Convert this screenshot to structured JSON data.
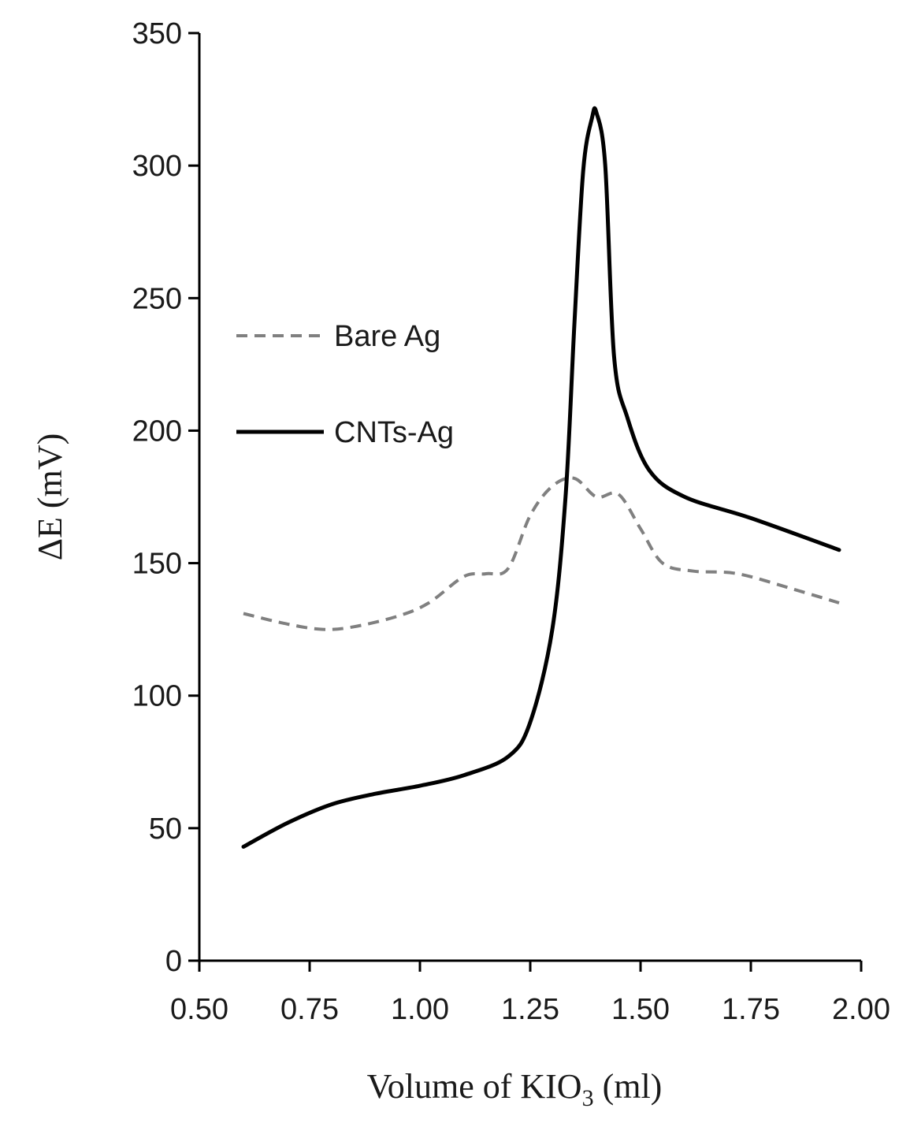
{
  "chart_data": {
    "type": "line",
    "title": "",
    "xlabel": "Volume of KIO",
    "xlabel_subscript": "3",
    "xlabel_suffix": " (ml)",
    "ylabel": "ΔE (mV)",
    "xlim": [
      0.5,
      2.0
    ],
    "ylim": [
      0,
      350
    ],
    "x_ticks": [
      "0.50",
      "0.75",
      "1.00",
      "1.25",
      "1.50",
      "1.75",
      "2.00"
    ],
    "y_ticks": [
      "0",
      "50",
      "100",
      "150",
      "200",
      "250",
      "300",
      "350"
    ],
    "x_tick_values": [
      0.5,
      0.75,
      1.0,
      1.25,
      1.5,
      1.75,
      2.0
    ],
    "y_tick_values": [
      0,
      50,
      100,
      150,
      200,
      250,
      300,
      350
    ],
    "grid": false,
    "legend_position": "left-middle",
    "series": [
      {
        "name": "Bare Ag",
        "style": "dashed",
        "color": "#808080",
        "x": [
          0.6,
          0.7,
          0.78,
          0.85,
          0.95,
          1.02,
          1.1,
          1.15,
          1.2,
          1.25,
          1.3,
          1.35,
          1.4,
          1.45,
          1.5,
          1.55,
          1.62,
          1.72,
          1.85,
          1.95
        ],
        "y": [
          131,
          127,
          125,
          126,
          130,
          135,
          145,
          146,
          148,
          168,
          179,
          182,
          175,
          176,
          163,
          150,
          147,
          146,
          140,
          135
        ]
      },
      {
        "name": "CNTs-Ag",
        "style": "solid",
        "color": "#000000",
        "x": [
          0.6,
          0.7,
          0.8,
          0.9,
          1.0,
          1.1,
          1.2,
          1.25,
          1.3,
          1.33,
          1.35,
          1.37,
          1.39,
          1.4,
          1.42,
          1.44,
          1.47,
          1.52,
          1.6,
          1.75,
          1.95
        ],
        "y": [
          43,
          52,
          59,
          63,
          66,
          70,
          77,
          90,
          125,
          175,
          240,
          298,
          318,
          320,
          300,
          228,
          205,
          185,
          175,
          167,
          155
        ]
      }
    ]
  }
}
